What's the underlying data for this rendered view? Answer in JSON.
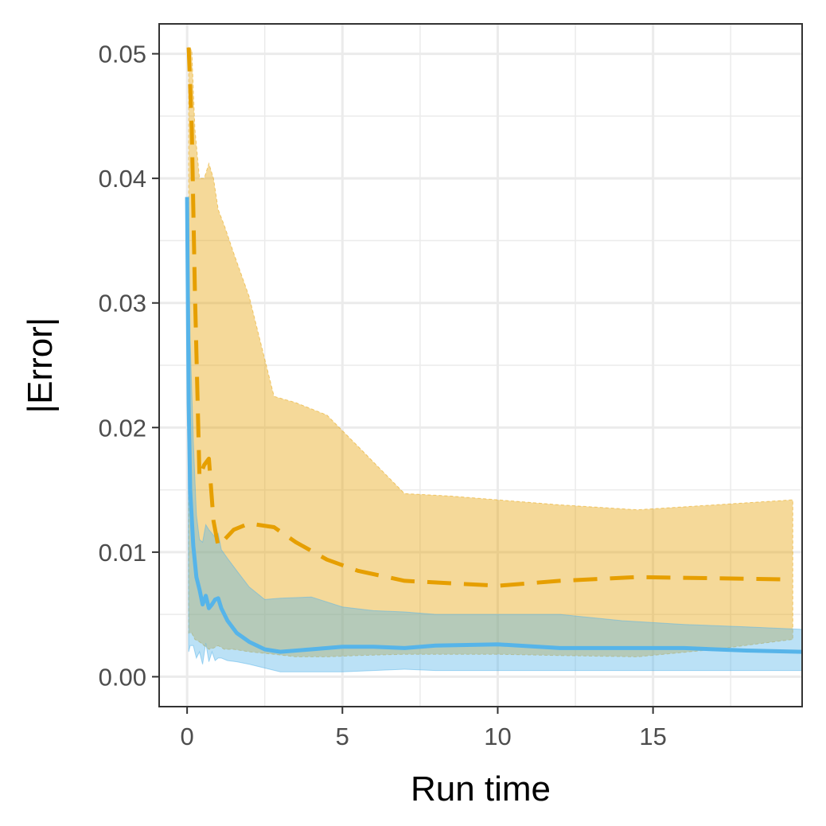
{
  "chart_data": {
    "type": "line",
    "xlabel": "Run time",
    "ylabel": "|Error|",
    "xlim": [
      -0.9,
      19.8
    ],
    "ylim": [
      -0.0024,
      0.0524
    ],
    "x_ticks": [
      0,
      5,
      10,
      15
    ],
    "x_tick_labels": [
      "0",
      "5",
      "10",
      "15"
    ],
    "x_minor_ticks": [
      2.5,
      7.5,
      12.5,
      17.5
    ],
    "y_ticks": [
      0,
      0.01,
      0.02,
      0.03,
      0.04,
      0.05
    ],
    "y_tick_labels": [
      "0.00",
      "0.01",
      "0.02",
      "0.03",
      "0.04",
      "0.05"
    ],
    "y_minor_ticks": [
      0.005,
      0.015,
      0.025,
      0.035,
      0.045
    ],
    "grid": true,
    "legend": "none",
    "series": [
      {
        "color": "#E69F00",
        "line_style": "dashed",
        "x": [
          0.05,
          0.15,
          0.25,
          0.4,
          0.55,
          0.7,
          0.85,
          1.0,
          1.2,
          1.5,
          2.0,
          2.8,
          3.5,
          4.5,
          5.5,
          7.0,
          8.5,
          10.0,
          12.0,
          14.5,
          17.0,
          19.5
        ],
        "y": [
          0.0505,
          0.044,
          0.031,
          0.016,
          0.017,
          0.0175,
          0.0125,
          0.0105,
          0.011,
          0.0118,
          0.0123,
          0.012,
          0.0108,
          0.0094,
          0.0085,
          0.0077,
          0.0075,
          0.0073,
          0.0077,
          0.008,
          0.0079,
          0.0078
        ],
        "band_upper": [
          0.0505,
          0.0503,
          0.044,
          0.04,
          0.04,
          0.0412,
          0.04,
          0.0375,
          0.0362,
          0.034,
          0.0305,
          0.0225,
          0.022,
          0.021,
          0.0185,
          0.0147,
          0.0145,
          0.0142,
          0.0138,
          0.0134,
          0.0138,
          0.0142
        ],
        "band_lower": [
          0.0035,
          0.0035,
          0.003,
          0.0028,
          0.0025,
          0.0022,
          0.0023,
          0.0025,
          0.0022,
          0.0022,
          0.002,
          0.0018,
          0.0016,
          0.0016,
          0.0017,
          0.0018,
          0.0018,
          0.0018,
          0.0017,
          0.0016,
          0.0022,
          0.003
        ]
      },
      {
        "color": "#56B4E9",
        "line_style": "solid",
        "x": [
          0.0,
          0.05,
          0.1,
          0.2,
          0.3,
          0.4,
          0.5,
          0.6,
          0.7,
          0.8,
          0.9,
          1.0,
          1.1,
          1.3,
          1.6,
          2.0,
          2.5,
          3.0,
          4.0,
          5.0,
          6.0,
          7.0,
          8.0,
          10.0,
          12.0,
          14.0,
          16.0,
          18.0,
          19.8
        ],
        "y": [
          0.0385,
          0.022,
          0.015,
          0.0105,
          0.008,
          0.007,
          0.0058,
          0.0065,
          0.0055,
          0.0058,
          0.0062,
          0.0063,
          0.0055,
          0.0045,
          0.0035,
          0.0028,
          0.0022,
          0.002,
          0.0022,
          0.0024,
          0.0024,
          0.0023,
          0.0025,
          0.0026,
          0.0023,
          0.0023,
          0.0023,
          0.0021,
          0.002
        ],
        "band_upper": [
          0.0385,
          0.034,
          0.027,
          0.019,
          0.013,
          0.011,
          0.0108,
          0.0122,
          0.0118,
          0.0115,
          0.0112,
          0.0115,
          0.0102,
          0.0095,
          0.0085,
          0.0072,
          0.0062,
          0.0063,
          0.0064,
          0.0056,
          0.0053,
          0.0052,
          0.005,
          0.005,
          0.005,
          0.0045,
          0.0042,
          0.004,
          0.0038
        ],
        "band_lower": [
          0.0385,
          0.002,
          0.0025,
          0.0025,
          0.0015,
          0.002,
          0.001,
          0.0027,
          0.0012,
          0.002,
          0.0013,
          0.0015,
          0.0015,
          0.0013,
          0.0012,
          0.001,
          0.0007,
          0.0004,
          0.0004,
          0.0004,
          0.0005,
          0.0006,
          0.0005,
          0.0005,
          0.0005,
          0.0005,
          0.0005,
          0.0005,
          0.0005
        ]
      }
    ]
  }
}
